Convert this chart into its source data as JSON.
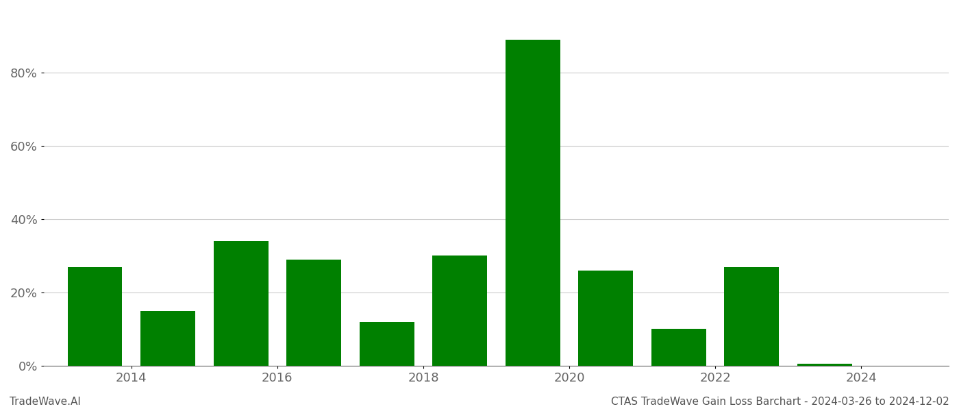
{
  "years": [
    2013.5,
    2014.5,
    2015.5,
    2016.5,
    2017.5,
    2018.5,
    2019.5,
    2020.5,
    2021.5,
    2022.5,
    2023.5
  ],
  "values": [
    0.27,
    0.15,
    0.34,
    0.29,
    0.12,
    0.3,
    0.89,
    0.26,
    0.1,
    0.27,
    0.005
  ],
  "bar_color": "#008000",
  "background_color": "#ffffff",
  "grid_color": "#cccccc",
  "axis_color": "#666666",
  "ylabel_ticks": [
    0.0,
    0.2,
    0.4,
    0.6,
    0.8
  ],
  "ylim": [
    0,
    0.97
  ],
  "xlim": [
    2012.8,
    2025.2
  ],
  "footer_left": "TradeWave.AI",
  "footer_right": "CTAS TradeWave Gain Loss Barchart - 2024-03-26 to 2024-12-02",
  "footer_color": "#555555",
  "footer_fontsize": 11,
  "tick_fontsize": 13,
  "xtick_years": [
    2014,
    2016,
    2018,
    2020,
    2022,
    2024
  ],
  "bar_width": 0.75
}
